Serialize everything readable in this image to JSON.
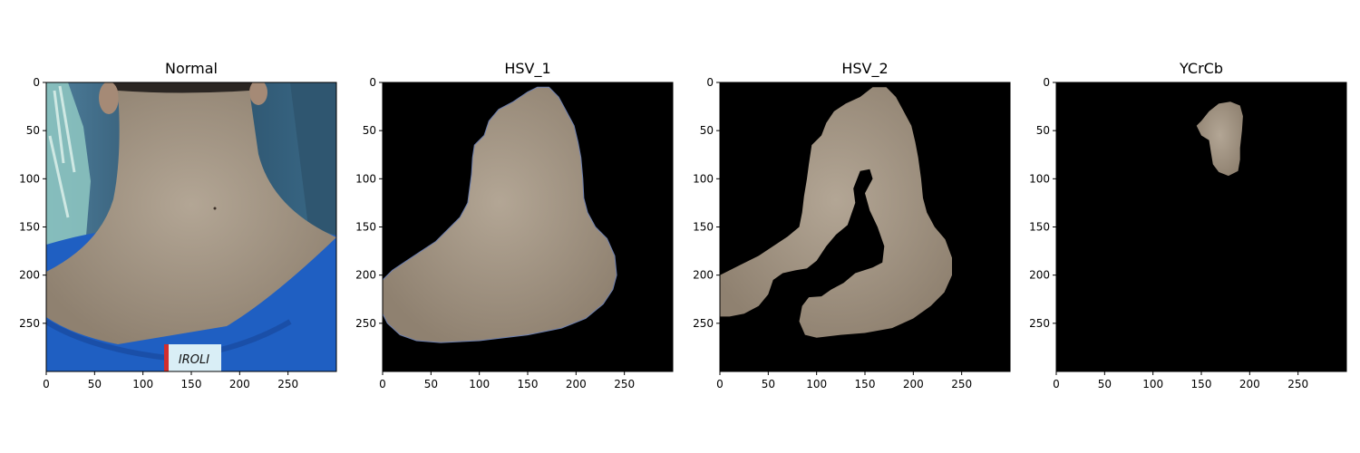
{
  "chart_data": [
    {
      "type": "image",
      "title": "Normal",
      "xlim": [
        0,
        300
      ],
      "ylim": [
        300,
        0
      ],
      "xticks": [
        0,
        50,
        100,
        150,
        200,
        250
      ],
      "yticks": [
        0,
        50,
        100,
        150,
        200,
        250
      ],
      "mask": "full",
      "label_text": "IROLI"
    },
    {
      "type": "image",
      "title": "HSV_1",
      "xlim": [
        0,
        300
      ],
      "ylim": [
        300,
        0
      ],
      "xticks": [
        0,
        50,
        100,
        150,
        200,
        250
      ],
      "yticks": [
        0,
        50,
        100,
        150,
        200,
        250
      ],
      "mask": "skin_region_1",
      "mask_outline": [
        [
          0,
          205
        ],
        [
          10,
          195
        ],
        [
          25,
          185
        ],
        [
          40,
          175
        ],
        [
          55,
          165
        ],
        [
          70,
          150
        ],
        [
          80,
          140
        ],
        [
          88,
          125
        ],
        [
          90,
          110
        ],
        [
          92,
          95
        ],
        [
          93,
          78
        ],
        [
          95,
          65
        ],
        [
          105,
          55
        ],
        [
          110,
          40
        ],
        [
          120,
          28
        ],
        [
          135,
          20
        ],
        [
          150,
          10
        ],
        [
          160,
          5
        ],
        [
          172,
          5
        ],
        [
          182,
          15
        ],
        [
          190,
          30
        ],
        [
          198,
          45
        ],
        [
          202,
          62
        ],
        [
          205,
          78
        ],
        [
          207,
          100
        ],
        [
          208,
          120
        ],
        [
          212,
          135
        ],
        [
          220,
          150
        ],
        [
          232,
          162
        ],
        [
          240,
          180
        ],
        [
          242,
          200
        ],
        [
          238,
          215
        ],
        [
          228,
          230
        ],
        [
          210,
          245
        ],
        [
          185,
          255
        ],
        [
          150,
          262
        ],
        [
          100,
          268
        ],
        [
          60,
          270
        ],
        [
          35,
          268
        ],
        [
          18,
          262
        ],
        [
          5,
          250
        ],
        [
          0,
          240
        ]
      ]
    },
    {
      "type": "image",
      "title": "HSV_2",
      "xlim": [
        0,
        300
      ],
      "ylim": [
        300,
        0
      ],
      "xticks": [
        0,
        50,
        100,
        150,
        200,
        250
      ],
      "yticks": [
        0,
        50,
        100,
        150,
        200,
        250
      ],
      "mask": "skin_region_2",
      "mask_outline_a": [
        [
          0,
          200
        ],
        [
          20,
          190
        ],
        [
          40,
          180
        ],
        [
          55,
          170
        ],
        [
          70,
          160
        ],
        [
          82,
          150
        ],
        [
          85,
          135
        ],
        [
          87,
          118
        ],
        [
          90,
          100
        ],
        [
          92,
          85
        ],
        [
          95,
          65
        ],
        [
          105,
          55
        ],
        [
          110,
          42
        ],
        [
          118,
          30
        ],
        [
          130,
          22
        ],
        [
          145,
          15
        ],
        [
          158,
          5
        ],
        [
          172,
          5
        ],
        [
          182,
          15
        ],
        [
          190,
          30
        ],
        [
          198,
          45
        ],
        [
          202,
          62
        ],
        [
          205,
          78
        ],
        [
          208,
          100
        ],
        [
          210,
          120
        ],
        [
          214,
          135
        ],
        [
          222,
          150
        ],
        [
          233,
          163
        ],
        [
          240,
          182
        ],
        [
          240,
          200
        ],
        [
          232,
          218
        ],
        [
          218,
          232
        ],
        [
          200,
          245
        ],
        [
          178,
          255
        ],
        [
          150,
          260
        ],
        [
          125,
          262
        ],
        [
          100,
          265
        ],
        [
          88,
          262
        ],
        [
          82,
          248
        ],
        [
          85,
          232
        ],
        [
          92,
          223
        ],
        [
          105,
          222
        ],
        [
          115,
          215
        ],
        [
          128,
          208
        ],
        [
          140,
          198
        ],
        [
          158,
          192
        ],
        [
          168,
          187
        ],
        [
          170,
          170
        ],
        [
          163,
          150
        ],
        [
          155,
          133
        ],
        [
          150,
          115
        ],
        [
          158,
          100
        ],
        [
          155,
          90
        ],
        [
          145,
          92
        ],
        [
          138,
          110
        ],
        [
          140,
          125
        ],
        [
          132,
          148
        ],
        [
          120,
          158
        ],
        [
          110,
          170
        ],
        [
          100,
          185
        ],
        [
          90,
          193
        ],
        [
          78,
          195
        ],
        [
          65,
          198
        ],
        [
          55,
          205
        ],
        [
          50,
          220
        ],
        [
          40,
          232
        ],
        [
          25,
          240
        ],
        [
          10,
          243
        ],
        [
          0,
          243
        ]
      ]
    },
    {
      "type": "image",
      "title": "YCrCb",
      "xlim": [
        0,
        300
      ],
      "ylim": [
        300,
        0
      ],
      "xticks": [
        0,
        50,
        100,
        150,
        200,
        250
      ],
      "yticks": [
        0,
        50,
        100,
        150,
        200,
        250
      ],
      "mask": "skin_region_3",
      "mask_outline": [
        [
          150,
          40
        ],
        [
          158,
          30
        ],
        [
          168,
          22
        ],
        [
          180,
          20
        ],
        [
          190,
          24
        ],
        [
          193,
          35
        ],
        [
          192,
          50
        ],
        [
          190,
          68
        ],
        [
          190,
          80
        ],
        [
          188,
          92
        ],
        [
          178,
          97
        ],
        [
          168,
          93
        ],
        [
          162,
          85
        ],
        [
          160,
          73
        ],
        [
          158,
          60
        ],
        [
          150,
          55
        ],
        [
          145,
          45
        ]
      ]
    }
  ],
  "colors": {
    "background_mask": "#000000",
    "skin": "#a59784",
    "skin_light": "#b5a898",
    "shirt_blue": "#1f5fc2",
    "wall": "#3d6a86",
    "curtain": "#8fc8c2"
  }
}
